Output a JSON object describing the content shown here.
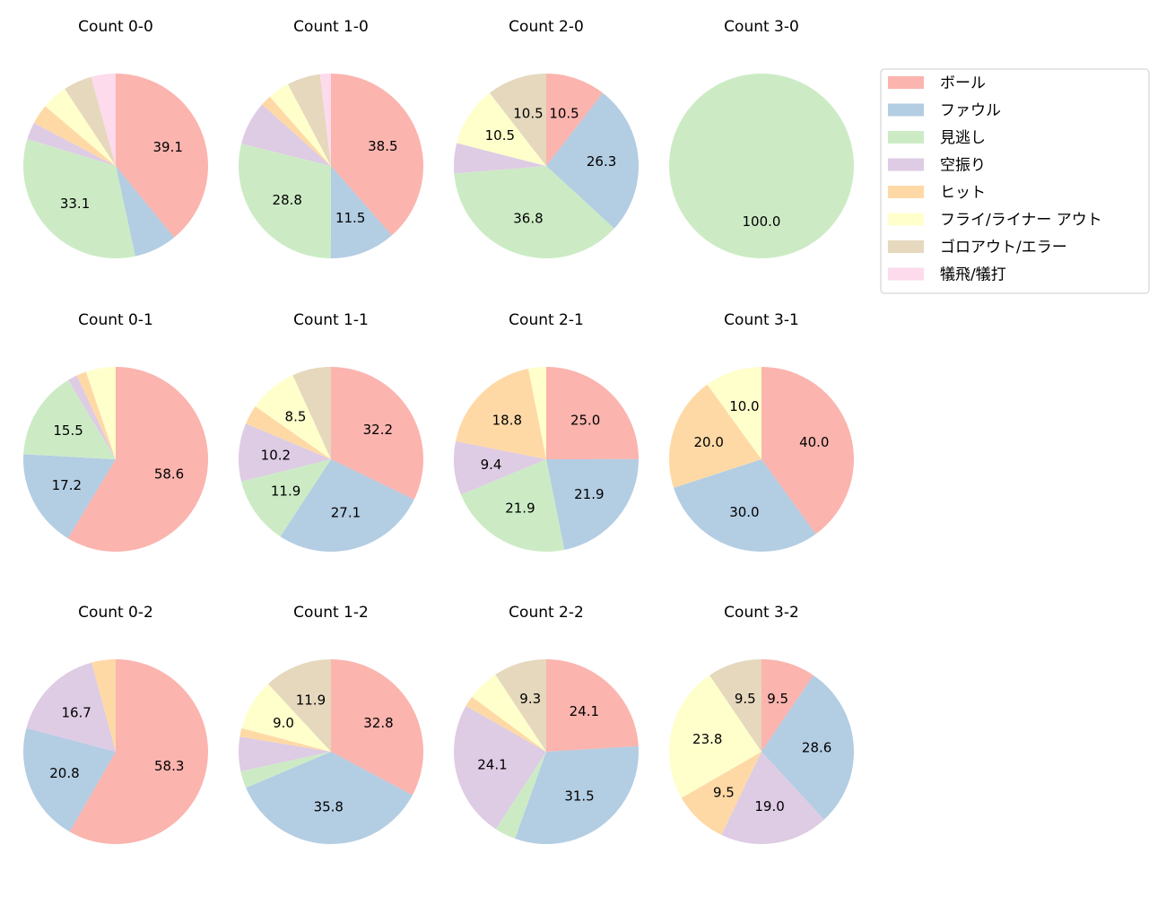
{
  "chart_data": {
    "type": "pie",
    "legend_position": "top-right",
    "legend": [
      "ボール",
      "ファウル",
      "見逃し",
      "空振り",
      "ヒット",
      "フライ/ライナー アウト",
      "ゴロアウト/エラー",
      "犠飛/犠打"
    ],
    "colors": [
      "#fbb4ae",
      "#b3cde3",
      "#ccebc5",
      "#decbe4",
      "#fed9a6",
      "#ffffcc",
      "#e5d8bd",
      "#fddaec"
    ],
    "charts": [
      {
        "title": "Count 0-0",
        "values": [
          39.1,
          7.5,
          33.1,
          3.0,
          3.5,
          4.5,
          5.0,
          4.3
        ]
      },
      {
        "title": "Count 1-0",
        "values": [
          38.5,
          11.5,
          28.8,
          7.7,
          1.9,
          3.8,
          5.8,
          1.9
        ]
      },
      {
        "title": "Count 2-0",
        "values": [
          10.5,
          26.3,
          36.8,
          5.3,
          0,
          10.5,
          10.5,
          0
        ]
      },
      {
        "title": "Count 3-0",
        "values": [
          0,
          0,
          100.0,
          0,
          0,
          0,
          0,
          0
        ]
      },
      {
        "title": "Count 0-1",
        "values": [
          58.6,
          17.2,
          15.5,
          1.7,
          1.7,
          5.2,
          0,
          0
        ]
      },
      {
        "title": "Count 1-1",
        "values": [
          32.2,
          27.1,
          11.9,
          10.2,
          3.4,
          8.5,
          6.8,
          0
        ]
      },
      {
        "title": "Count 2-1",
        "values": [
          25.0,
          21.9,
          21.9,
          9.4,
          18.8,
          3.1,
          0,
          0
        ]
      },
      {
        "title": "Count 3-1",
        "values": [
          40.0,
          30.0,
          0,
          0,
          20.0,
          10.0,
          0,
          0
        ]
      },
      {
        "title": "Count 0-2",
        "values": [
          58.3,
          20.8,
          0,
          16.7,
          4.2,
          0,
          0,
          0
        ]
      },
      {
        "title": "Count 1-2",
        "values": [
          32.8,
          35.8,
          3.0,
          6.0,
          1.5,
          9.0,
          11.9,
          0
        ]
      },
      {
        "title": "Count 2-2",
        "values": [
          24.1,
          31.5,
          3.7,
          24.1,
          1.9,
          5.6,
          9.3,
          0
        ]
      },
      {
        "title": "Count 3-2",
        "values": [
          9.5,
          28.6,
          0,
          19.0,
          9.5,
          23.8,
          9.5,
          0
        ]
      }
    ]
  }
}
